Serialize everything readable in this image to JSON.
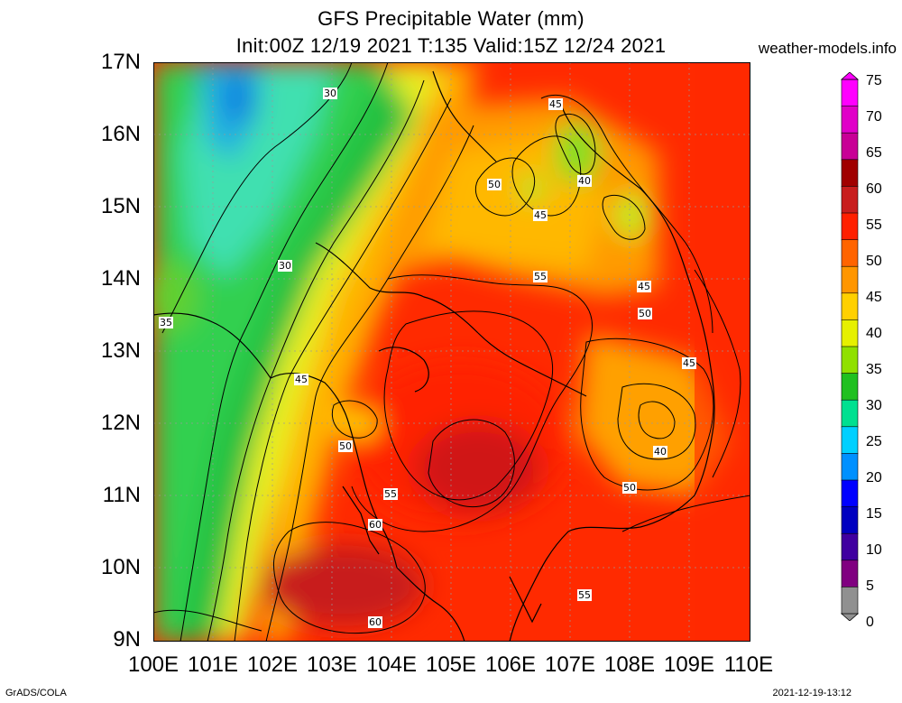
{
  "title": {
    "line1": "GFS Precipitable Water (mm)",
    "line2": "Init:00Z 12/19 2021 T:135 Valid:15Z 12/24 2021",
    "site": "weather-models.info"
  },
  "axes": {
    "lat_labels": [
      "17N",
      "16N",
      "15N",
      "14N",
      "13N",
      "12N",
      "11N",
      "10N",
      "9N"
    ],
    "lon_labels": [
      "100E",
      "101E",
      "102E",
      "103E",
      "104E",
      "105E",
      "106E",
      "107E",
      "108E",
      "109E",
      "110E"
    ]
  },
  "contour_labels": [
    "30",
    "30",
    "35",
    "45",
    "50",
    "45",
    "40",
    "45",
    "50",
    "55",
    "45",
    "50",
    "45",
    "40",
    "50",
    "55",
    "60",
    "60",
    "55",
    "50"
  ],
  "colorbar": {
    "labels": [
      "75",
      "70",
      "65",
      "60",
      "55",
      "50",
      "45",
      "40",
      "35",
      "30",
      "25",
      "20",
      "15",
      "10",
      "5",
      "0"
    ],
    "colors": [
      "#ff00ff",
      "#e000c8",
      "#c80096",
      "#a00000",
      "#c81e1e",
      "#ff2000",
      "#ff6400",
      "#ff9600",
      "#ffd000",
      "#e6f000",
      "#90e000",
      "#20c020",
      "#00e090",
      "#00d0ff",
      "#0090ff",
      "#0000ff",
      "#0000c0",
      "#4000a0",
      "#800080",
      "#909090"
    ]
  },
  "footer": {
    "left": "GrADS/COLA",
    "right": "2021-12-19-13:12"
  }
}
